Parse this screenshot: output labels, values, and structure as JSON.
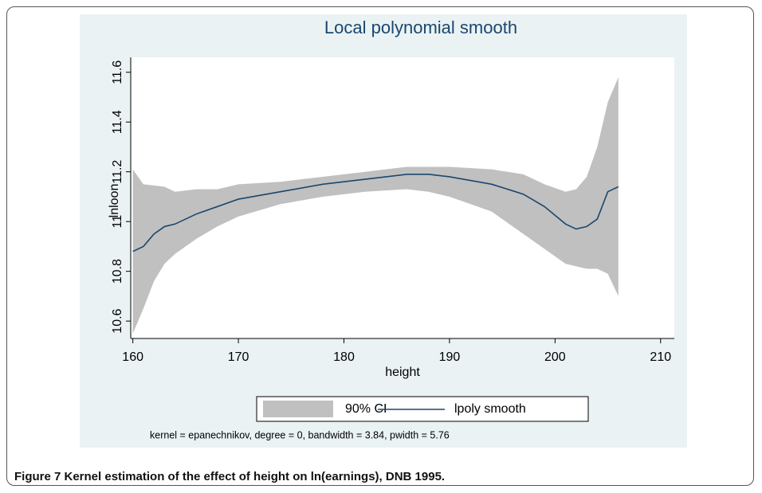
{
  "chart_data": {
    "type": "lpoly",
    "title": "Local polynomial smooth",
    "x_label": "height",
    "y_label": "lnloon",
    "note": "kernel = epanechnikov, degree = 0, bandwidth = 3.84, pwidth = 5.76",
    "x": [
      160,
      161,
      162,
      163,
      164,
      166,
      168,
      170,
      174,
      178,
      182,
      186,
      188,
      190,
      194,
      197,
      199,
      201,
      202,
      203,
      204,
      205,
      206
    ],
    "series": [
      {
        "name": "90% CI",
        "color": "#c0c0c0",
        "upper": [
          11.21,
          11.15,
          11.145,
          11.14,
          11.12,
          11.13,
          11.13,
          11.15,
          11.16,
          11.18,
          11.2,
          11.22,
          11.22,
          11.22,
          11.21,
          11.19,
          11.15,
          11.12,
          11.13,
          11.18,
          11.3,
          11.48,
          11.58
        ],
        "lower": [
          10.55,
          10.65,
          10.76,
          10.83,
          10.87,
          10.93,
          10.98,
          11.02,
          11.07,
          11.1,
          11.12,
          11.13,
          11.12,
          11.1,
          11.04,
          10.95,
          10.89,
          10.83,
          10.82,
          10.81,
          10.81,
          10.79,
          10.7
        ]
      },
      {
        "name": "lpoly smooth",
        "color": "#1a476f",
        "values": [
          10.88,
          10.9,
          10.95,
          10.98,
          10.99,
          11.03,
          11.06,
          11.09,
          11.12,
          11.15,
          11.17,
          11.19,
          11.19,
          11.18,
          11.15,
          11.11,
          11.06,
          10.99,
          10.97,
          10.98,
          11.01,
          11.12,
          11.14
        ]
      }
    ],
    "xlim": [
      159.8,
      211.3
    ],
    "xticks": [
      160,
      170,
      180,
      190,
      200,
      210
    ],
    "ylim": [
      10.53,
      11.66
    ],
    "yticks": [
      10.6,
      10.8,
      11,
      11.2,
      11.4,
      11.6
    ],
    "grid": false
  },
  "caption": "Figure 7 Kernel estimation of the effect of height on ln(earnings), DNB 1995."
}
